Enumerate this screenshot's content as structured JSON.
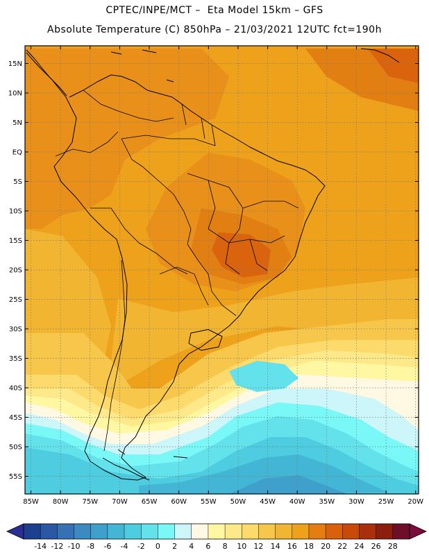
{
  "header": {
    "line1": "CPTEC/INPE/MCT –  Eta Model 15km – GFS",
    "line2": "Absolute Temperature (C) 850hPa – 21/03/2021 12UTC fct=190h"
  },
  "map": {
    "lon_range": [
      -86,
      -19.5
    ],
    "lat_range": [
      -58,
      18
    ],
    "lat_ticks": [
      {
        "value": 15,
        "label": "15N"
      },
      {
        "value": 10,
        "label": "10N"
      },
      {
        "value": 5,
        "label": "5N"
      },
      {
        "value": 0,
        "label": "EQ"
      },
      {
        "value": -5,
        "label": "5S"
      },
      {
        "value": -10,
        "label": "10S"
      },
      {
        "value": -15,
        "label": "15S"
      },
      {
        "value": -20,
        "label": "20S"
      },
      {
        "value": -25,
        "label": "25S"
      },
      {
        "value": -30,
        "label": "30S"
      },
      {
        "value": -35,
        "label": "35S"
      },
      {
        "value": -40,
        "label": "40S"
      },
      {
        "value": -45,
        "label": "45S"
      },
      {
        "value": -50,
        "label": "50S"
      },
      {
        "value": -55,
        "label": "55S"
      }
    ],
    "lon_ticks": [
      {
        "value": -85,
        "label": "85W"
      },
      {
        "value": -80,
        "label": "80W"
      },
      {
        "value": -75,
        "label": "75W"
      },
      {
        "value": -70,
        "label": "70W"
      },
      {
        "value": -65,
        "label": "65W"
      },
      {
        "value": -60,
        "label": "60W"
      },
      {
        "value": -55,
        "label": "55W"
      },
      {
        "value": -50,
        "label": "50W"
      },
      {
        "value": -45,
        "label": "45W"
      },
      {
        "value": -40,
        "label": "40W"
      },
      {
        "value": -35,
        "label": "35W"
      },
      {
        "value": -30,
        "label": "30W"
      },
      {
        "value": -25,
        "label": "25W"
      },
      {
        "value": -20,
        "label": "20W"
      }
    ]
  },
  "colorbar": {
    "values": [
      "-14",
      "-12",
      "-10",
      "-8",
      "-6",
      "-4",
      "-2",
      "0",
      "2",
      "4",
      "6",
      "8",
      "10",
      "12",
      "14",
      "16",
      "18",
      "20",
      "22",
      "24",
      "26",
      "28"
    ],
    "colors": [
      "#1c3f8e",
      "#2a58a5",
      "#3671b6",
      "#3b8ac2",
      "#3fa0cc",
      "#43b6d6",
      "#4ecce0",
      "#63e2ec",
      "#7af7f7",
      "#cdf6fb",
      "#fff8e2",
      "#fff7a2",
      "#fde98a",
      "#fcdb6c",
      "#f7c74c",
      "#f2b532",
      "#eea11b",
      "#e47e12",
      "#d9600c",
      "#c84a0b",
      "#a9300c",
      "#8c1e0e",
      "#6e0f2a"
    ],
    "min_color": "#2a2f96",
    "max_color": "#7a0b3c"
  }
}
